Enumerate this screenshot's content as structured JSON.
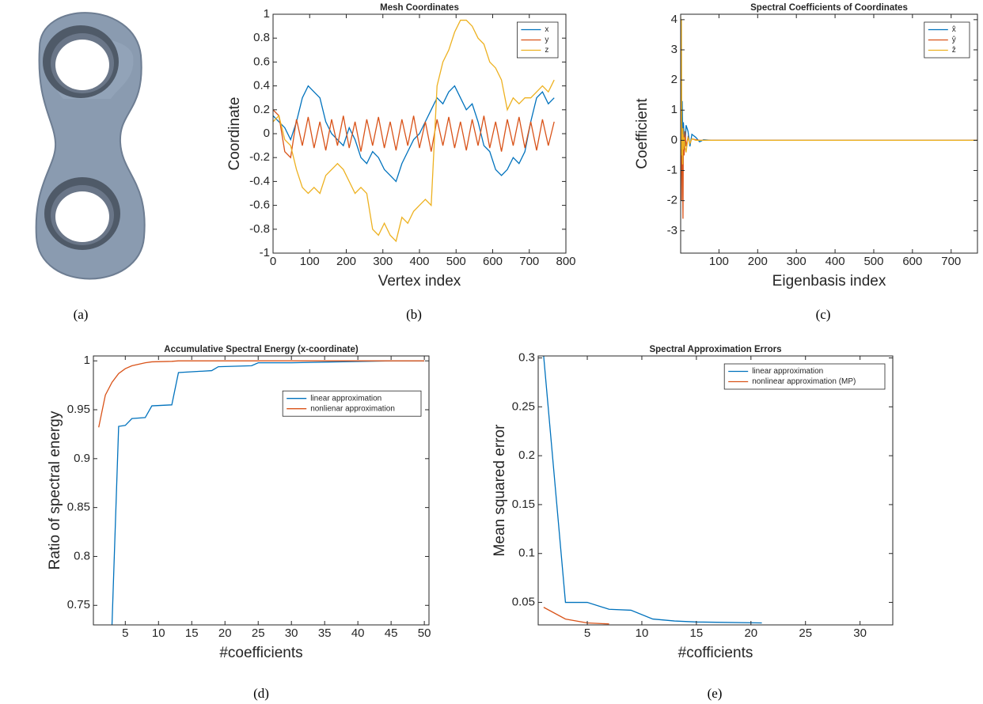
{
  "captions": [
    "(a)",
    "(b)",
    "(c)",
    "(d)",
    "(e)"
  ],
  "chart_data": [
    {
      "type": "line",
      "title": "Mesh Coordinates",
      "xlabel": "Vertex index",
      "ylabel": "Coordinate",
      "x": [
        0,
        16,
        32,
        48,
        64,
        80,
        96,
        112,
        128,
        144,
        160,
        176,
        192,
        208,
        224,
        240,
        256,
        272,
        288,
        304,
        320,
        336,
        352,
        368,
        384,
        400,
        416,
        432,
        448,
        464,
        480,
        496,
        512,
        528,
        544,
        560,
        576,
        592,
        608,
        624,
        640,
        656,
        672,
        688,
        704,
        720,
        736,
        752,
        768
      ],
      "series": [
        {
          "name": "x",
          "color": "#0072bd",
          "values": [
            0.15,
            0.1,
            0.05,
            -0.05,
            0.1,
            0.3,
            0.4,
            0.35,
            0.3,
            0.1,
            0.0,
            -0.05,
            -0.1,
            0.05,
            -0.05,
            -0.2,
            -0.25,
            -0.15,
            -0.2,
            -0.3,
            -0.35,
            -0.4,
            -0.25,
            -0.15,
            -0.05,
            0.0,
            0.1,
            0.2,
            0.3,
            0.25,
            0.35,
            0.4,
            0.3,
            0.2,
            0.25,
            0.1,
            -0.1,
            -0.15,
            -0.3,
            -0.35,
            -0.3,
            -0.2,
            -0.25,
            -0.15,
            0.1,
            0.3,
            0.35,
            0.25,
            0.3
          ]
        },
        {
          "name": "y",
          "color": "#d95319",
          "values": [
            0.2,
            0.15,
            -0.15,
            -0.2,
            0.12,
            -0.1,
            0.14,
            -0.12,
            0.1,
            -0.14,
            0.12,
            -0.1,
            0.15,
            -0.12,
            0.1,
            -0.15,
            0.12,
            -0.1,
            0.14,
            -0.12,
            0.1,
            -0.14,
            0.12,
            -0.1,
            0.15,
            -0.12,
            0.1,
            -0.15,
            0.12,
            -0.1,
            0.14,
            -0.12,
            0.1,
            -0.14,
            0.12,
            -0.1,
            0.15,
            -0.12,
            0.1,
            -0.15,
            0.12,
            -0.1,
            0.14,
            -0.12,
            0.1,
            -0.14,
            0.12,
            -0.1,
            0.1
          ]
        },
        {
          "name": "z",
          "color": "#edb120",
          "values": [
            0.1,
            0.15,
            -0.05,
            -0.1,
            -0.3,
            -0.45,
            -0.5,
            -0.45,
            -0.5,
            -0.35,
            -0.3,
            -0.25,
            -0.3,
            -0.4,
            -0.5,
            -0.45,
            -0.5,
            -0.8,
            -0.85,
            -0.75,
            -0.85,
            -0.9,
            -0.7,
            -0.75,
            -0.65,
            -0.6,
            -0.55,
            -0.6,
            0.4,
            0.6,
            0.7,
            0.85,
            0.95,
            0.95,
            0.9,
            0.8,
            0.75,
            0.6,
            0.55,
            0.45,
            0.2,
            0.3,
            0.25,
            0.3,
            0.3,
            0.35,
            0.4,
            0.35,
            0.45
          ]
        }
      ],
      "xlim": [
        0,
        800
      ],
      "ylim": [
        -1,
        1
      ],
      "xticks": [
        0,
        100,
        200,
        300,
        400,
        500,
        600,
        700,
        800
      ],
      "yticks": [
        -1,
        -0.8,
        -0.6,
        -0.4,
        -0.2,
        0,
        0.2,
        0.4,
        0.6,
        0.8,
        1
      ],
      "legend": "upper right"
    },
    {
      "type": "line",
      "title": "Spectral Coefficients of Coordinates",
      "xlabel": "Eigenbasis index",
      "ylabel": "Coefficient",
      "x": [
        1,
        2,
        3,
        4,
        5,
        6,
        7,
        8,
        10,
        12,
        15,
        20,
        25,
        30,
        40,
        50,
        60,
        80,
        768
      ],
      "series": [
        {
          "name": "x̂",
          "color": "#0072bd",
          "values": [
            0.2,
            0.5,
            -0.2,
            0.3,
            1.3,
            0.5,
            -0.5,
            0.6,
            0.2,
            -0.3,
            0.5,
            0.3,
            -0.2,
            0.2,
            0.1,
            -0.05,
            0.02,
            0,
            0
          ]
        },
        {
          "name": "ŷ",
          "color": "#d95319",
          "values": [
            0.1,
            -0.2,
            -2.0,
            0.5,
            0.3,
            -1.0,
            -2.6,
            0.2,
            -0.5,
            0.3,
            -0.2,
            0.1,
            -0.1,
            0.05,
            0.02,
            0,
            0,
            0,
            0
          ]
        },
        {
          "name": "ẑ",
          "color": "#edb120",
          "values": [
            4.1,
            -0.3,
            4.0,
            -0.5,
            0.2,
            -0.8,
            0.4,
            -0.3,
            0.1,
            -0.2,
            -0.4,
            0.1,
            -0.1,
            0.05,
            0,
            0,
            0,
            0,
            0
          ]
        }
      ],
      "xlim": [
        1,
        768
      ],
      "ylim": [
        -3.74,
        4.18
      ],
      "xticks": [
        100,
        200,
        300,
        400,
        500,
        600,
        700
      ],
      "yticks": [
        -3,
        -2,
        -1,
        0,
        1,
        2,
        3,
        4
      ],
      "legend": "upper right"
    },
    {
      "type": "line",
      "title": "Accumulative Spectral Energy (x-coordinate)",
      "xlabel": "#coefficients",
      "ylabel": "Ratio of spectral energy",
      "x": [
        1,
        2,
        3,
        4,
        5,
        6,
        8,
        9,
        12,
        13,
        18,
        19,
        24,
        25,
        30,
        37,
        45,
        50
      ],
      "series": [
        {
          "name": "linear approximation",
          "color": "#0072bd",
          "values": [
            null,
            null,
            0.73,
            0.933,
            0.934,
            0.941,
            0.942,
            0.954,
            0.955,
            0.988,
            0.99,
            0.994,
            0.995,
            0.998,
            0.998,
            0.999,
            1.0,
            1.0
          ]
        },
        {
          "name": "nonlienar approximation",
          "color": "#d95319",
          "values": [
            0.932,
            0.965,
            0.978,
            0.987,
            0.992,
            0.995,
            0.998,
            0.999,
            0.9995,
            1.0,
            1.0,
            1.0,
            1.0,
            1.0,
            1.0,
            1.0,
            1.0,
            1.0
          ]
        }
      ],
      "xlim": [
        0.2,
        50.7
      ],
      "ylim": [
        0.73,
        1.005
      ],
      "xticks": [
        5,
        10,
        15,
        20,
        25,
        30,
        35,
        40,
        45,
        50
      ],
      "yticks": [
        0.75,
        0.8,
        0.85,
        0.9,
        0.95,
        1
      ],
      "legend": "center right"
    },
    {
      "type": "line",
      "title": "Spectral Approximation Errors",
      "xlabel": "#cofficients",
      "ylabel": "Mean squared error",
      "x": [
        1,
        3,
        5,
        7,
        9,
        11,
        13,
        15,
        21
      ],
      "series": [
        {
          "name": "linear approximation",
          "color": "#0072bd",
          "values": [
            0.302,
            0.05,
            0.05,
            0.043,
            0.042,
            0.033,
            0.031,
            0.03,
            0.029
          ]
        },
        {
          "name": "nonlinear approximation (MP)",
          "color": "#d95319",
          "values": [
            0.045,
            0.033,
            0.029,
            0.028,
            null,
            null,
            null,
            null,
            null
          ]
        }
      ],
      "xlim": [
        0.5,
        33
      ],
      "ylim": [
        0.027,
        0.302
      ],
      "xticks": [
        5,
        10,
        15,
        20,
        25,
        30
      ],
      "yticks": [
        0.05,
        0.1,
        0.15,
        0.2,
        0.25,
        0.3
      ],
      "legend": "upper right"
    }
  ]
}
